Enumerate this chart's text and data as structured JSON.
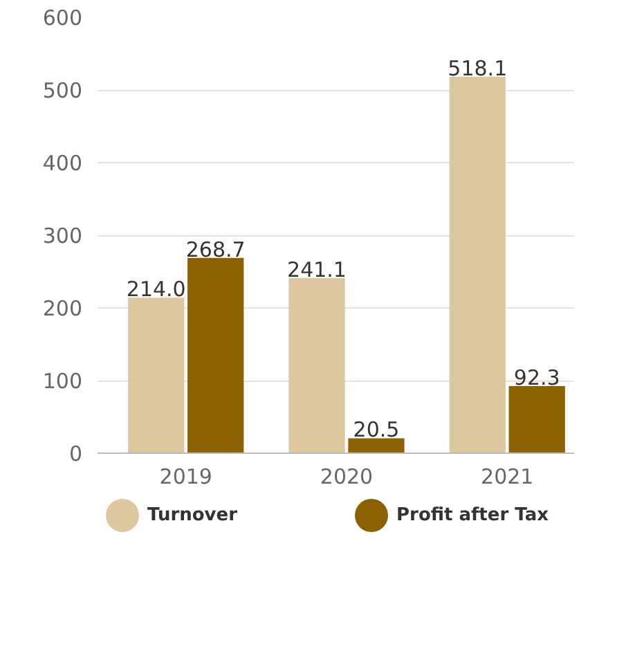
{
  "chart_data": {
    "type": "bar",
    "categories": [
      "2019",
      "2020",
      "2021"
    ],
    "series": [
      {
        "name": "Turnover",
        "color": "#dcc79e",
        "values": [
          214.0,
          241.1,
          518.1
        ],
        "value_labels": [
          "214.0",
          "241.1",
          "518.1"
        ]
      },
      {
        "name": "Profit after Tax",
        "color": "#8b6100",
        "values": [
          268.7,
          20.5,
          92.3
        ],
        "value_labels": [
          "268.7",
          "20.5",
          "92.3"
        ]
      }
    ],
    "ylim": [
      0,
      600
    ],
    "yticks": [
      0,
      100,
      200,
      300,
      400,
      500,
      600
    ],
    "grid": "y",
    "legend": "bottom"
  }
}
